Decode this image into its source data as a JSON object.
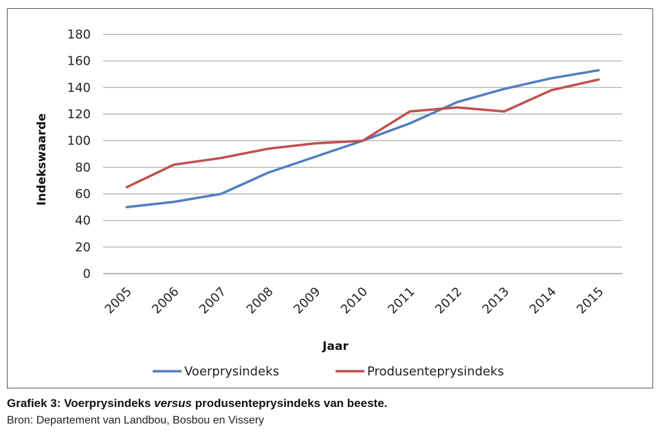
{
  "chart_data": {
    "type": "line",
    "title": "",
    "xlabel": "Jaar",
    "ylabel": "Indekswaarde",
    "categories": [
      "2005",
      "2006",
      "2007",
      "2008",
      "2009",
      "2010",
      "2011",
      "2012",
      "2013",
      "2014",
      "2015"
    ],
    "ylim": [
      0,
      180
    ],
    "yticks": [
      0,
      20,
      40,
      60,
      80,
      100,
      120,
      140,
      160,
      180
    ],
    "grid": true,
    "legend_position": "bottom",
    "series": [
      {
        "name": "Voerprysindeks",
        "color": "#4f7fc0",
        "values": [
          50,
          54,
          60,
          76,
          88,
          100,
          113,
          129,
          139,
          147,
          153
        ]
      },
      {
        "name": "Produsenteprysindeks",
        "color": "#c0504d",
        "values": [
          65,
          82,
          87,
          94,
          98,
          100,
          122,
          125,
          122,
          138,
          146
        ]
      }
    ]
  },
  "caption": {
    "prefix": "Grafiek 3: Voerprysindeks ",
    "emphasis": "versus",
    "suffix": " produsenteprysindeks van beeste."
  },
  "source": "Bron: Departement van Landbou, Bosbou en Vissery"
}
